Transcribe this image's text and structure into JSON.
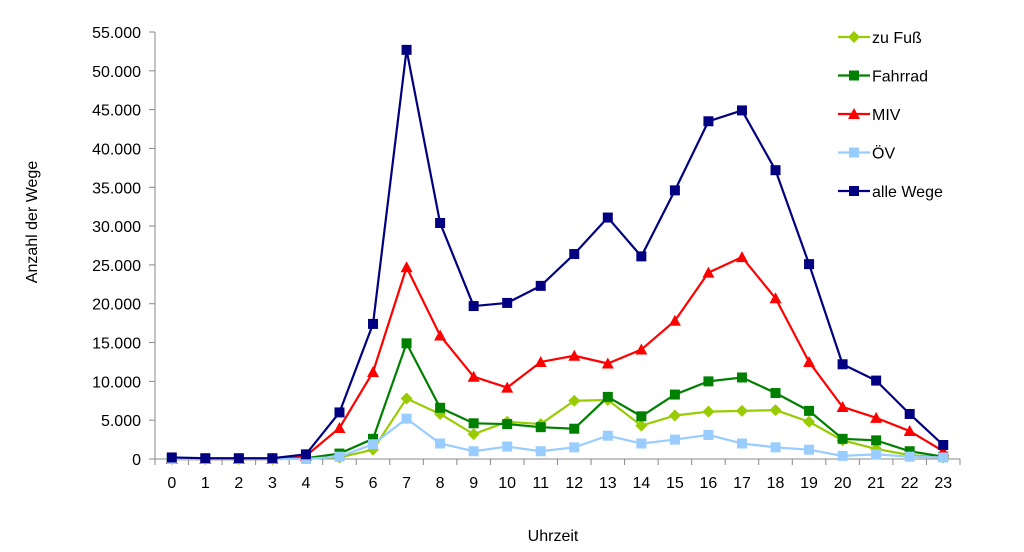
{
  "chart_data": {
    "type": "line",
    "title": "",
    "xlabel": "Uhrzeit",
    "ylabel": "Anzahl der Wege",
    "x": [
      0,
      1,
      2,
      3,
      4,
      5,
      6,
      7,
      8,
      9,
      10,
      11,
      12,
      13,
      14,
      15,
      16,
      17,
      18,
      19,
      20,
      21,
      22,
      23
    ],
    "x_tick_labels": [
      "0",
      "1",
      "2",
      "3",
      "4",
      "5",
      "6",
      "7",
      "8",
      "9",
      "10",
      "11",
      "12",
      "13",
      "14",
      "15",
      "16",
      "17",
      "18",
      "19",
      "20",
      "21",
      "22",
      "23"
    ],
    "ylim": [
      0,
      55000
    ],
    "y_ticks": [
      0,
      5000,
      10000,
      15000,
      20000,
      25000,
      30000,
      35000,
      40000,
      45000,
      50000,
      55000
    ],
    "y_tick_labels": [
      "0",
      "5.000",
      "10.000",
      "15.000",
      "20.000",
      "25.000",
      "30.000",
      "35.000",
      "40.000",
      "45.000",
      "50.000",
      "55.000"
    ],
    "grid": false,
    "legend_position": "right",
    "series": [
      {
        "name": "zu Fuß",
        "color": "#99cc00",
        "marker": "diamond",
        "values": [
          0,
          0,
          0,
          0,
          100,
          200,
          1200,
          7800,
          5800,
          3200,
          4800,
          4500,
          7500,
          7600,
          4300,
          5600,
          6100,
          6200,
          6300,
          4800,
          2400,
          1300,
          500,
          200
        ]
      },
      {
        "name": "Fahrrad",
        "color": "#008000",
        "marker": "square",
        "values": [
          0,
          0,
          0,
          0,
          100,
          700,
          2600,
          14900,
          6600,
          4600,
          4500,
          4100,
          3900,
          8000,
          5500,
          8300,
          10000,
          10500,
          8500,
          6200,
          2600,
          2400,
          1000,
          300
        ]
      },
      {
        "name": "MIV",
        "color": "#ff0000",
        "marker": "triangle",
        "values": [
          0,
          0,
          0,
          0,
          400,
          4000,
          11200,
          24700,
          15900,
          10600,
          9200,
          12500,
          13300,
          12300,
          14100,
          17800,
          24000,
          26000,
          20700,
          12500,
          6700,
          5300,
          3600,
          1000
        ]
      },
      {
        "name": "ÖV",
        "color": "#99ccff",
        "marker": "square",
        "values": [
          0,
          0,
          0,
          0,
          0,
          300,
          1900,
          5200,
          2000,
          1000,
          1600,
          1000,
          1500,
          3000,
          2000,
          2500,
          3100,
          2000,
          1500,
          1200,
          400,
          600,
          300,
          200
        ]
      },
      {
        "name": "alle Wege",
        "color": "#000080",
        "marker": "square",
        "values": [
          200,
          100,
          100,
          100,
          600,
          6000,
          17400,
          52700,
          30400,
          19700,
          20100,
          22300,
          26400,
          31100,
          26100,
          34600,
          43500,
          44900,
          37200,
          25100,
          12200,
          10100,
          5800,
          1800
        ]
      }
    ]
  }
}
